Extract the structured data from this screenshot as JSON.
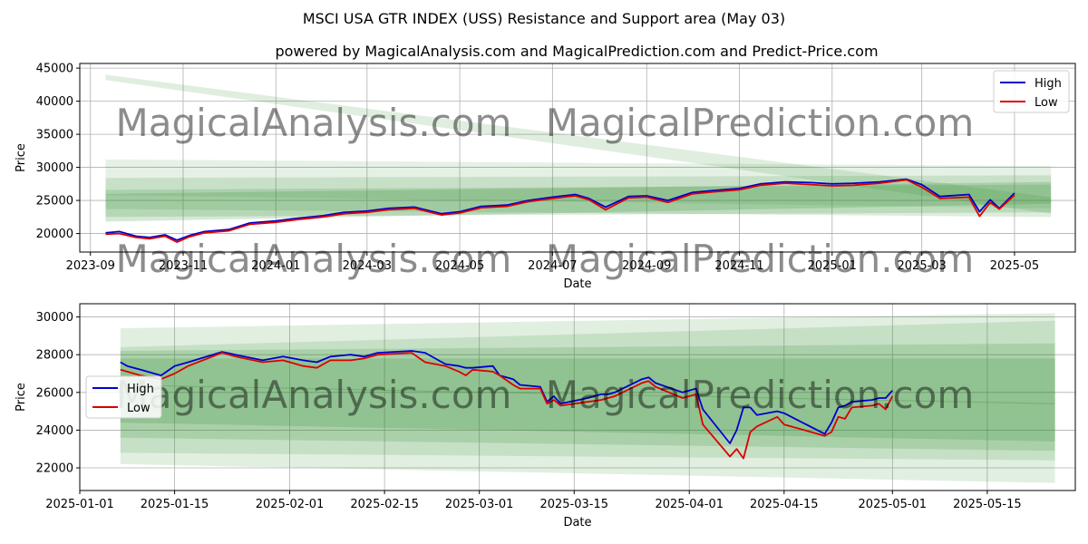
{
  "figure": {
    "title": "MSCI USA GTR INDEX (USS) Resistance and Support area (May 03)",
    "subtitle": "powered by MagicalAnalysis.com and MagicalPrediction.com and Predict-Price.com",
    "watermarks": [
      "MagicalAnalysis.com",
      "MagicalPrediction.com"
    ]
  },
  "colors": {
    "high": "#0000cc",
    "low": "#dd0000",
    "band": "#2e8b2e",
    "grid": "#b0b0b0"
  },
  "chart_data": [
    {
      "type": "line",
      "xlabel": "Date",
      "ylabel": "Price",
      "xlim": [
        "2023-08-25",
        "2025-06-10"
      ],
      "ylim": [
        17200,
        45700
      ],
      "grid": true,
      "legend": "top-right",
      "xticks": [
        "2023-09",
        "2023-11",
        "2024-01",
        "2024-03",
        "2024-05",
        "2024-07",
        "2024-09",
        "2024-11",
        "2025-01",
        "2025-03",
        "2025-05"
      ],
      "yticks": [
        20000,
        25000,
        30000,
        35000,
        40000,
        45000
      ],
      "bands": [
        {
          "x": [
            "2023-09-11",
            "2025-05-25"
          ],
          "upper": [
            44000,
            25500
          ],
          "lower": [
            43200,
            23000
          ],
          "alpha": 0.15
        },
        {
          "x": [
            "2023-09-11",
            "2025-05-25"
          ],
          "upper": [
            31200,
            30200
          ],
          "lower": [
            25800,
            23800
          ],
          "alpha": 0.12
        },
        {
          "x": [
            "2023-09-11",
            "2025-05-25"
          ],
          "upper": [
            28400,
            28800
          ],
          "lower": [
            23700,
            22500
          ],
          "alpha": 0.16
        },
        {
          "x": [
            "2023-09-11",
            "2025-05-25"
          ],
          "upper": [
            26600,
            27400
          ],
          "lower": [
            22500,
            23200
          ],
          "alpha": 0.18
        },
        {
          "x": [
            "2023-09-11",
            "2025-05-25"
          ],
          "upper": [
            26000,
            27800
          ],
          "lower": [
            21800,
            24500
          ],
          "alpha": 0.2
        }
      ],
      "series": [
        {
          "name": "High",
          "x": [
            "2023-09-11",
            "2023-09-20",
            "2023-10-01",
            "2023-10-10",
            "2023-10-20",
            "2023-10-28",
            "2023-11-05",
            "2023-11-15",
            "2023-12-01",
            "2023-12-15",
            "2024-01-01",
            "2024-01-15",
            "2024-02-01",
            "2024-02-15",
            "2024-03-01",
            "2024-03-15",
            "2024-04-01",
            "2024-04-19",
            "2024-05-01",
            "2024-05-15",
            "2024-06-01",
            "2024-06-15",
            "2024-07-01",
            "2024-07-16",
            "2024-07-25",
            "2024-08-05",
            "2024-08-20",
            "2024-09-01",
            "2024-09-15",
            "2024-10-01",
            "2024-10-15",
            "2024-11-01",
            "2024-11-15",
            "2024-12-01",
            "2024-12-18",
            "2025-01-01",
            "2025-01-15",
            "2025-02-01",
            "2025-02-19",
            "2025-03-01",
            "2025-03-13",
            "2025-04-01",
            "2025-04-08",
            "2025-04-15",
            "2025-04-21",
            "2025-05-01"
          ],
          "y": [
            20100,
            20300,
            19600,
            19400,
            19800,
            19000,
            19700,
            20300,
            20600,
            21600,
            21900,
            22300,
            22700,
            23200,
            23400,
            23800,
            24000,
            23000,
            23300,
            24100,
            24300,
            25000,
            25500,
            25900,
            25300,
            24000,
            25600,
            25700,
            25000,
            26200,
            26500,
            26800,
            27500,
            27800,
            27700,
            27500,
            27600,
            27800,
            28200,
            27400,
            25600,
            25900,
            23300,
            25100,
            23800,
            26100
          ]
        },
        {
          "name": "Low",
          "x": [
            "2023-09-11",
            "2023-09-20",
            "2023-10-01",
            "2023-10-10",
            "2023-10-20",
            "2023-10-28",
            "2023-11-05",
            "2023-11-15",
            "2023-12-01",
            "2023-12-15",
            "2024-01-01",
            "2024-01-15",
            "2024-02-01",
            "2024-02-15",
            "2024-03-01",
            "2024-03-15",
            "2024-04-01",
            "2024-04-19",
            "2024-05-01",
            "2024-05-15",
            "2024-06-01",
            "2024-06-15",
            "2024-07-01",
            "2024-07-16",
            "2024-07-25",
            "2024-08-05",
            "2024-08-20",
            "2024-09-01",
            "2024-09-15",
            "2024-10-01",
            "2024-10-15",
            "2024-11-01",
            "2024-11-15",
            "2024-12-01",
            "2024-12-18",
            "2025-01-01",
            "2025-01-15",
            "2025-02-01",
            "2025-02-19",
            "2025-03-01",
            "2025-03-13",
            "2025-04-01",
            "2025-04-08",
            "2025-04-15",
            "2025-04-21",
            "2025-05-01"
          ],
          "y": [
            19900,
            20000,
            19400,
            19200,
            19600,
            18700,
            19500,
            20100,
            20400,
            21400,
            21700,
            22100,
            22500,
            23000,
            23200,
            23600,
            23800,
            22800,
            23100,
            23900,
            24100,
            24800,
            25300,
            25700,
            25100,
            23600,
            25400,
            25500,
            24700,
            26000,
            26300,
            26600,
            27300,
            27600,
            27400,
            27200,
            27300,
            27600,
            28100,
            27000,
            25300,
            25500,
            22600,
            24700,
            23700,
            25800
          ]
        }
      ]
    },
    {
      "type": "line",
      "xlabel": "Date",
      "ylabel": "Price",
      "xlim": [
        "2025-01-01",
        "2025-05-28"
      ],
      "ylim": [
        20800,
        30700
      ],
      "grid": true,
      "legend": "center-left",
      "xticks": [
        "2025-01-01",
        "2025-01-15",
        "2025-02-01",
        "2025-02-15",
        "2025-03-01",
        "2025-03-15",
        "2025-04-01",
        "2025-04-15",
        "2025-05-01",
        "2025-05-15"
      ],
      "yticks": [
        22000,
        24000,
        26000,
        28000,
        30000
      ],
      "bands": [
        {
          "x": [
            "2025-01-07",
            "2025-05-25"
          ],
          "upper": [
            29400,
            30200
          ],
          "lower": [
            22200,
            21200
          ],
          "alpha": 0.14
        },
        {
          "x": [
            "2025-01-07",
            "2025-05-25"
          ],
          "upper": [
            28400,
            29800
          ],
          "lower": [
            22800,
            22400
          ],
          "alpha": 0.15
        },
        {
          "x": [
            "2025-01-07",
            "2025-05-25"
          ],
          "upper": [
            28200,
            28600
          ],
          "lower": [
            23600,
            22900
          ],
          "alpha": 0.18
        },
        {
          "x": [
            "2025-01-07",
            "2025-05-25"
          ],
          "upper": [
            27800,
            27800
          ],
          "lower": [
            24400,
            23400
          ],
          "alpha": 0.2
        },
        {
          "x": [
            "2025-01-07",
            "2025-05-25"
          ],
          "upper": [
            26400,
            25400
          ],
          "lower": [
            26400,
            25400
          ],
          "alpha": 0.3
        }
      ],
      "series": [
        {
          "name": "High",
          "x": [
            "2025-01-07",
            "2025-01-08",
            "2025-01-10",
            "2025-01-13",
            "2025-01-15",
            "2025-01-17",
            "2025-01-22",
            "2025-01-24",
            "2025-01-28",
            "2025-01-31",
            "2025-02-03",
            "2025-02-05",
            "2025-02-07",
            "2025-02-10",
            "2025-02-12",
            "2025-02-14",
            "2025-02-19",
            "2025-02-21",
            "2025-02-24",
            "2025-02-26",
            "2025-02-27",
            "2025-02-28",
            "2025-03-03",
            "2025-03-04",
            "2025-03-06",
            "2025-03-07",
            "2025-03-10",
            "2025-03-11",
            "2025-03-12",
            "2025-03-13",
            "2025-03-17",
            "2025-03-19",
            "2025-03-20",
            "2025-03-21",
            "2025-03-25",
            "2025-03-26",
            "2025-03-27",
            "2025-03-31",
            "2025-04-01",
            "2025-04-02",
            "2025-04-03",
            "2025-04-07",
            "2025-04-08",
            "2025-04-09",
            "2025-04-10",
            "2025-04-11",
            "2025-04-14",
            "2025-04-15",
            "2025-04-21",
            "2025-04-22",
            "2025-04-23",
            "2025-04-24",
            "2025-04-25",
            "2025-04-28",
            "2025-04-29",
            "2025-04-30",
            "2025-05-01"
          ],
          "y": [
            27600,
            27400,
            27200,
            26900,
            27400,
            27600,
            28150,
            28000,
            27700,
            27900,
            27700,
            27600,
            27900,
            28000,
            27900,
            28100,
            28200,
            28100,
            27500,
            27400,
            27300,
            27300,
            27400,
            26900,
            26700,
            26400,
            26300,
            25500,
            25800,
            25400,
            25700,
            25900,
            25900,
            26000,
            26700,
            26800,
            26500,
            26000,
            26100,
            26200,
            25100,
            23300,
            24000,
            25200,
            25200,
            24800,
            25000,
            24900,
            23800,
            24400,
            25200,
            25300,
            25500,
            25600,
            25700,
            25700,
            26100
          ]
        },
        {
          "name": "Low",
          "x": [
            "2025-01-07",
            "2025-01-08",
            "2025-01-10",
            "2025-01-13",
            "2025-01-15",
            "2025-01-17",
            "2025-01-22",
            "2025-01-24",
            "2025-01-28",
            "2025-01-31",
            "2025-02-03",
            "2025-02-05",
            "2025-02-07",
            "2025-02-10",
            "2025-02-12",
            "2025-02-14",
            "2025-02-19",
            "2025-02-21",
            "2025-02-24",
            "2025-02-26",
            "2025-02-27",
            "2025-02-28",
            "2025-03-03",
            "2025-03-04",
            "2025-03-06",
            "2025-03-07",
            "2025-03-10",
            "2025-03-11",
            "2025-03-12",
            "2025-03-13",
            "2025-03-17",
            "2025-03-19",
            "2025-03-20",
            "2025-03-21",
            "2025-03-25",
            "2025-03-26",
            "2025-03-27",
            "2025-03-31",
            "2025-04-01",
            "2025-04-02",
            "2025-04-03",
            "2025-04-07",
            "2025-04-08",
            "2025-04-09",
            "2025-04-10",
            "2025-04-11",
            "2025-04-14",
            "2025-04-15",
            "2025-04-21",
            "2025-04-22",
            "2025-04-23",
            "2025-04-24",
            "2025-04-25",
            "2025-04-28",
            "2025-04-29",
            "2025-04-30",
            "2025-05-01"
          ],
          "y": [
            27200,
            27100,
            26900,
            26700,
            27000,
            27400,
            28100,
            27900,
            27600,
            27700,
            27400,
            27300,
            27700,
            27700,
            27800,
            28000,
            28100,
            27600,
            27400,
            27100,
            26900,
            27200,
            27100,
            26900,
            26400,
            26200,
            26200,
            25400,
            25600,
            25300,
            25500,
            25600,
            25700,
            25800,
            26500,
            26600,
            26300,
            25700,
            25800,
            25900,
            24300,
            22600,
            23000,
            22500,
            23900,
            24200,
            24700,
            24300,
            23700,
            23900,
            24700,
            24600,
            25200,
            25300,
            25400,
            25100,
            25800
          ]
        }
      ]
    }
  ]
}
